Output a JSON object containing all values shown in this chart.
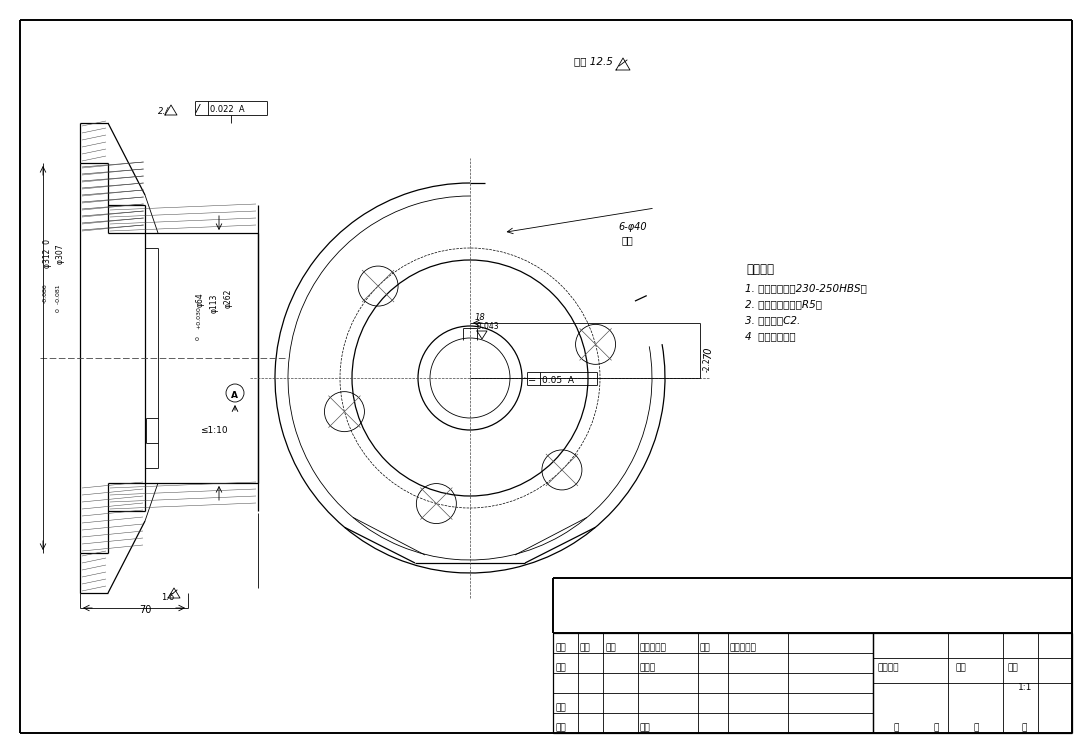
{
  "bg_color": "#ffffff",
  "line_color": "#000000",
  "tech_req_title": "技术要求",
  "tech_req": [
    "1. 热处理调质，230-250HBS。",
    "2. 未注圆角半径为R5。",
    "3. 未注倒角C2.",
    "4  清洗去毛刺。"
  ],
  "surface_roughness": "其余 12.5",
  "tb_labels": {
    "biaoji": "标记",
    "chushu": "处数",
    "fenqu": "分区",
    "gengwen": "更改文件号",
    "qianming": "签名",
    "nianyueri": "年、月、日",
    "sheji": "设计",
    "biaozhunhua": "标准化",
    "shenhe": "审核",
    "gongyi": "工艺",
    "pizhun": "批准",
    "jieduan": "阶段标记",
    "zhongliang": "重量",
    "bili": "比例",
    "scale": "1:1",
    "gong": "共",
    "zhang1": "张",
    "di": "第",
    "zhang2": "张"
  }
}
